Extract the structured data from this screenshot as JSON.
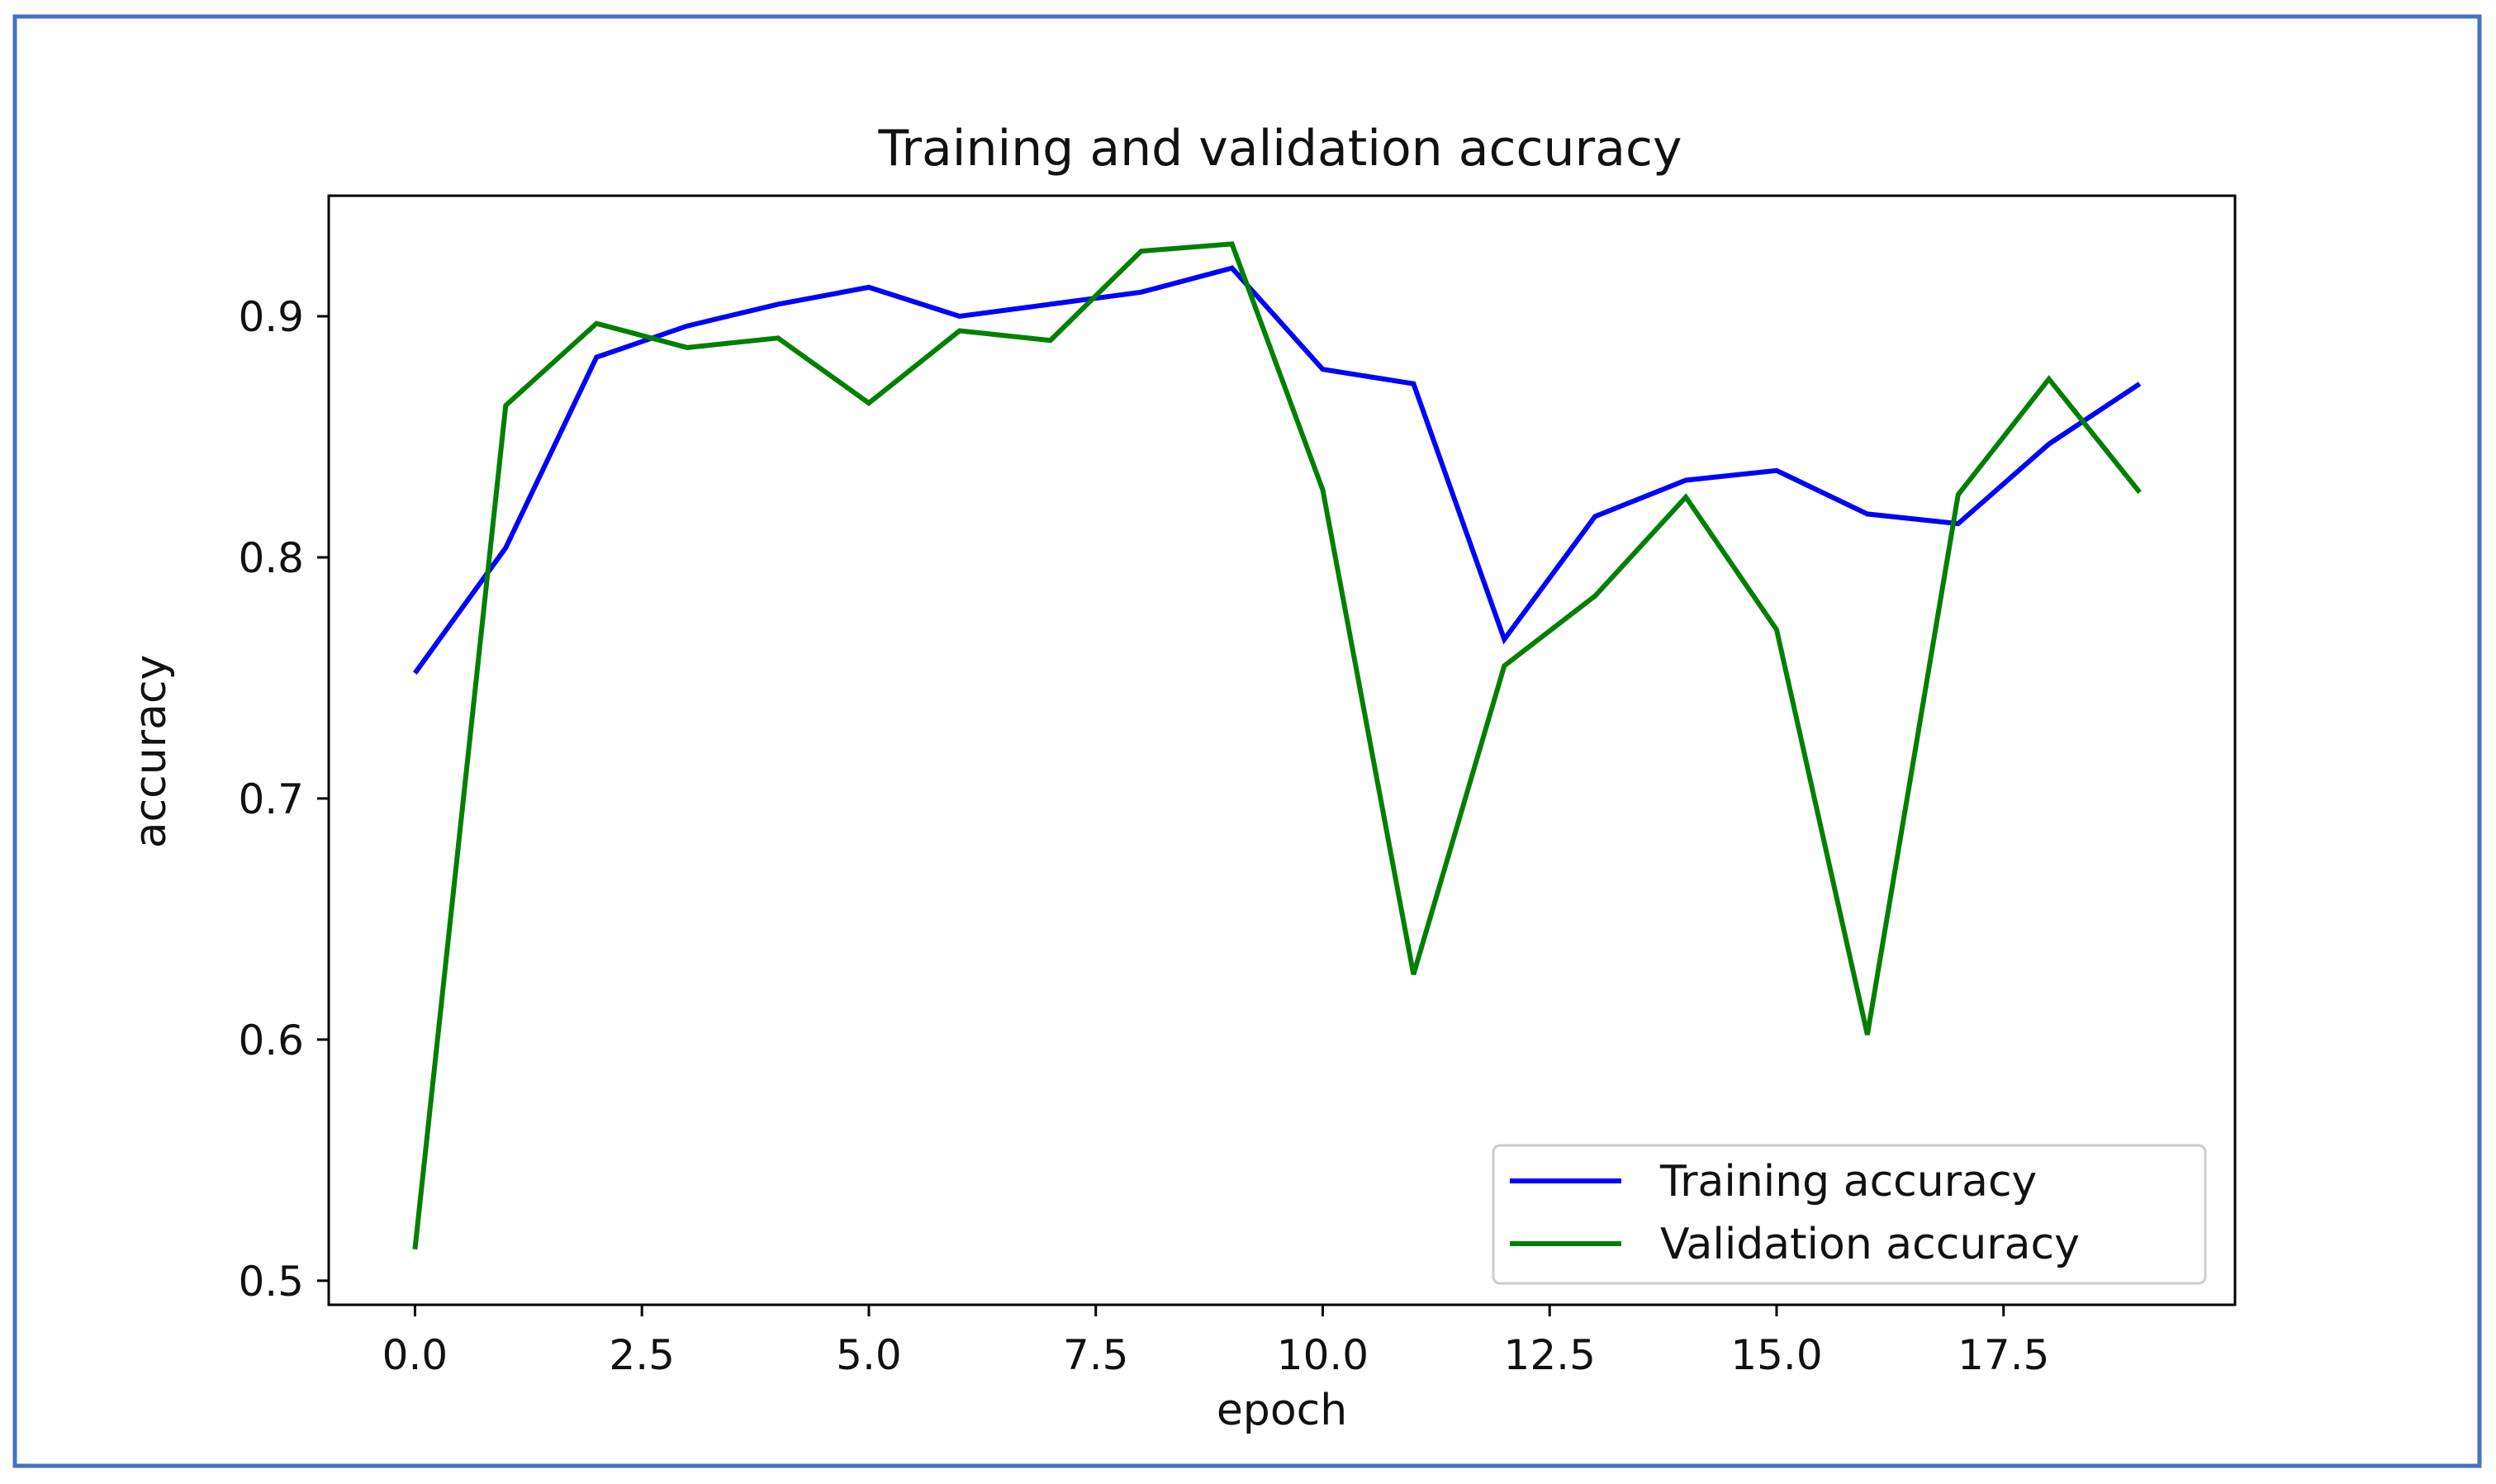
{
  "chart_data": {
    "type": "line",
    "title": "Training and validation accuracy",
    "xlabel": "epoch",
    "ylabel": "accuracy",
    "xlim": [
      -0.95,
      20.05
    ],
    "ylim": [
      0.49,
      0.95
    ],
    "xticks": [
      0,
      2.5,
      5,
      7.5,
      10,
      12.5,
      15,
      17.5
    ],
    "xtick_labels": [
      "0.0",
      "2.5",
      "5.0",
      "7.5",
      "10.0",
      "12.5",
      "15.0",
      "17.5"
    ],
    "yticks": [
      0.5,
      0.6,
      0.7,
      0.8,
      0.9
    ],
    "ytick_labels": [
      "0.5",
      "0.6",
      "0.7",
      "0.8",
      "0.9"
    ],
    "grid": false,
    "legend_position": "bottom-right",
    "x": [
      0,
      1,
      2,
      3,
      4,
      5,
      6,
      7,
      8,
      9,
      10,
      11,
      12,
      13,
      14,
      15,
      16,
      17,
      18,
      19
    ],
    "series": [
      {
        "name": "Training accuracy",
        "color": "#0000ff",
        "values": [
          0.752,
          0.804,
          0.883,
          0.896,
          0.905,
          0.912,
          0.9,
          0.905,
          0.91,
          0.92,
          0.878,
          0.872,
          0.766,
          0.817,
          0.832,
          0.836,
          0.818,
          0.814,
          0.847,
          0.872
        ]
      },
      {
        "name": "Validation accuracy",
        "color": "#008000",
        "values": [
          0.513,
          0.863,
          0.897,
          0.887,
          0.891,
          0.864,
          0.894,
          0.89,
          0.927,
          0.93,
          0.828,
          0.627,
          0.755,
          0.784,
          0.825,
          0.77,
          0.602,
          0.826,
          0.874,
          0.827
        ]
      }
    ]
  },
  "frame_color": "#4472c4"
}
